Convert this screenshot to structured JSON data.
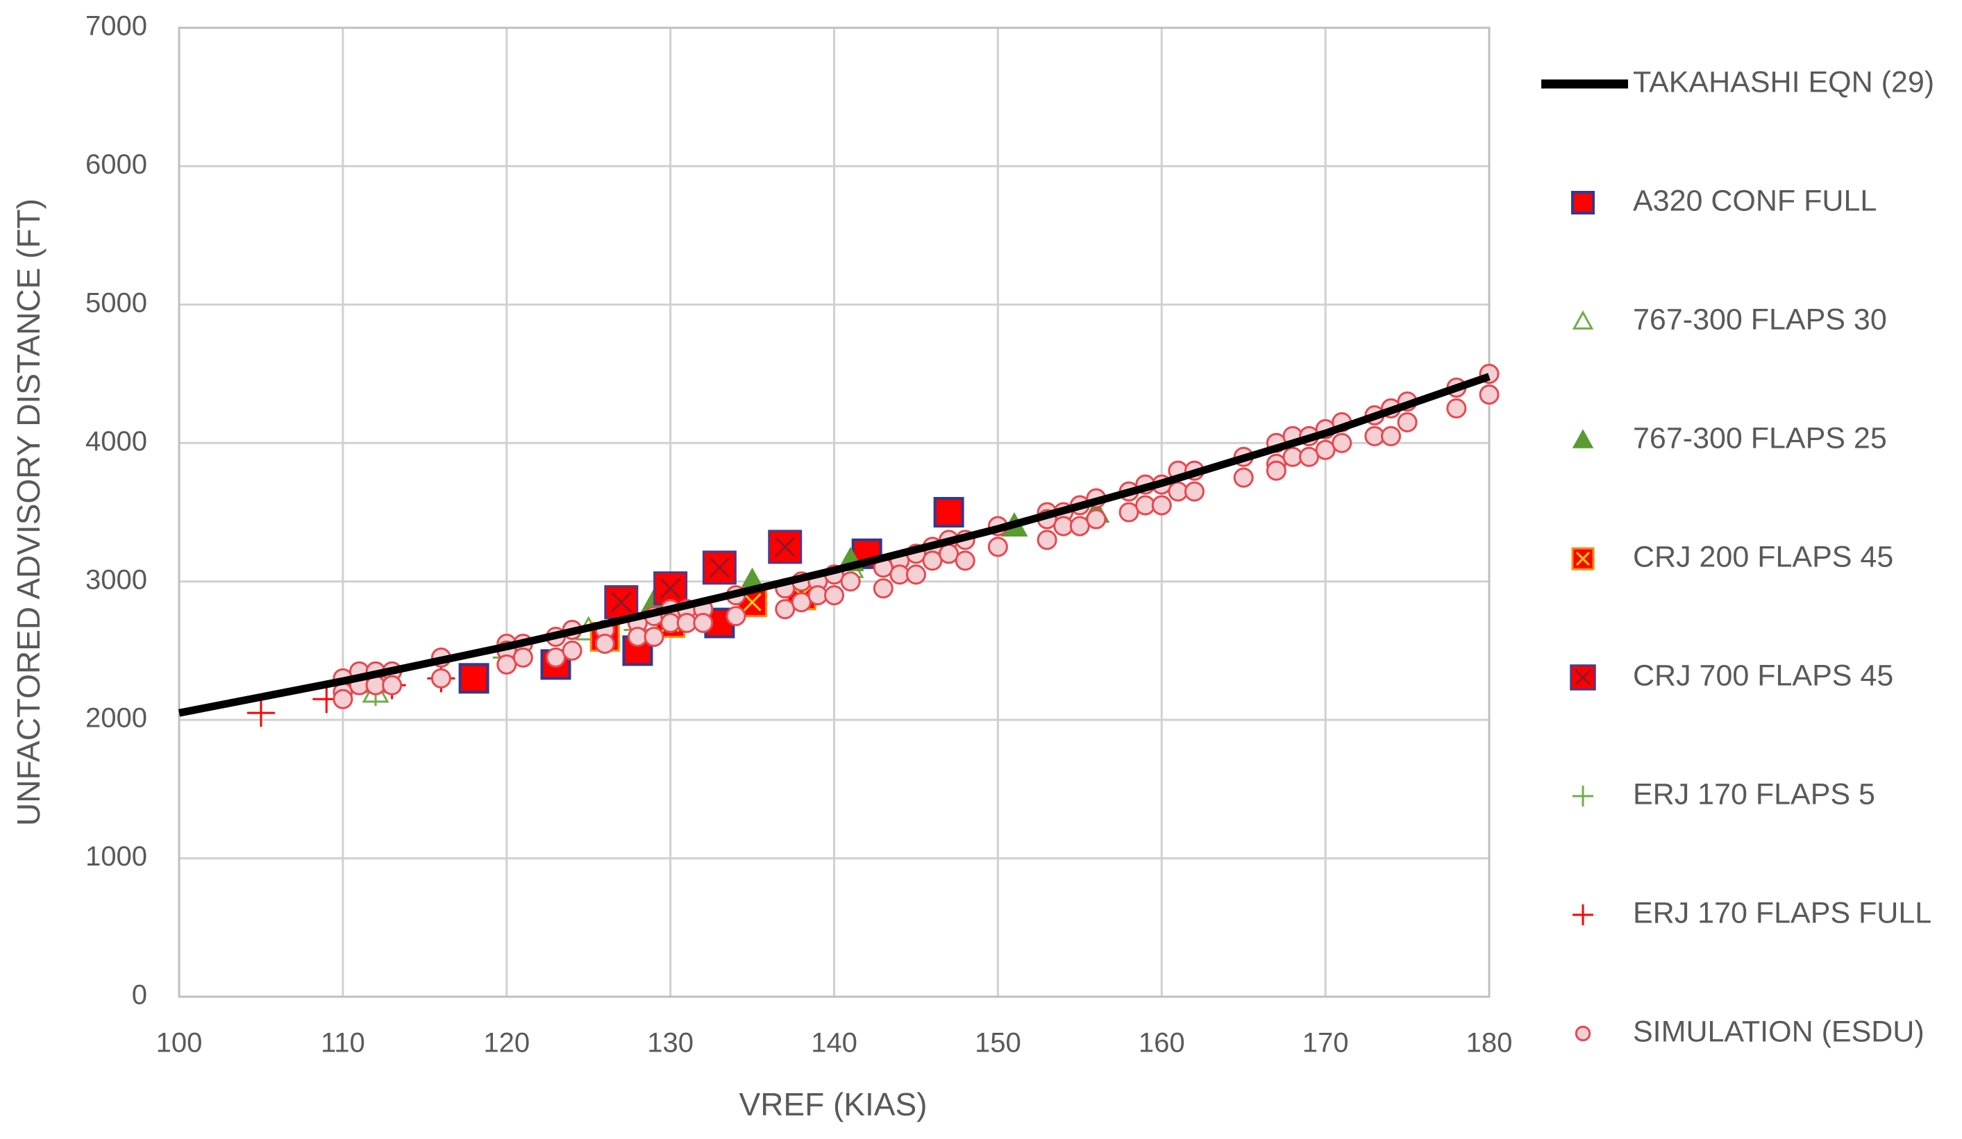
{
  "chart_data": {
    "type": "scatter",
    "x_label": "VREF (KIAS)",
    "y_label": "UNFACTORED ADVISORY DISTANCE (FT)",
    "xlim": [
      100,
      180
    ],
    "xticks": [
      100,
      110,
      120,
      130,
      140,
      150,
      160,
      170,
      180
    ],
    "ylim": [
      0,
      7000
    ],
    "yticks": [
      0,
      1000,
      2000,
      3000,
      4000,
      5000,
      6000,
      7000
    ],
    "grid": true,
    "legend": "right",
    "series": [
      {
        "name": "TAKAHASHI EQN (29)",
        "marker": "line",
        "color": "#000000",
        "x": [
          100,
          110,
          120,
          130,
          140,
          150,
          160,
          170,
          180
        ],
        "values": [
          2050,
          2280,
          2530,
          2800,
          3080,
          3380,
          3710,
          4070,
          4480
        ]
      },
      {
        "name": "A320 CONF FULL",
        "marker": "square",
        "color": "#ff0000",
        "x": [
          118,
          123,
          128,
          133,
          142,
          147
        ],
        "values": [
          2300,
          2400,
          2500,
          2700,
          3200,
          3500
        ]
      },
      {
        "name": "767-300 FLAPS 30",
        "marker": "triangle-open",
        "color": "#70ad47",
        "x": [
          112,
          125,
          141
        ],
        "values": [
          2200,
          2650,
          3100
        ]
      },
      {
        "name": "767-300 FLAPS 25",
        "marker": "triangle",
        "color": "#5b9b32",
        "x": [
          129,
          135,
          141,
          151,
          156
        ],
        "values": [
          2850,
          3000,
          3150,
          3400,
          3500
        ]
      },
      {
        "name": "CRJ 200 FLAPS 45",
        "marker": "square-x-yellow",
        "color": "#ff0000",
        "x": [
          126,
          130,
          135,
          138
        ],
        "values": [
          2600,
          2700,
          2850,
          2900
        ]
      },
      {
        "name": "CRJ 700 FLAPS 45",
        "marker": "square-x",
        "color": "#ff0000",
        "x": [
          127,
          130,
          133,
          137
        ],
        "values": [
          2850,
          2950,
          3100,
          3250
        ]
      },
      {
        "name": "ERJ 170 FLAPS 5",
        "marker": "plus",
        "color": "#70ad47",
        "x": [
          112,
          120,
          128
        ],
        "values": [
          2200,
          2450,
          2650
        ]
      },
      {
        "name": "ERJ 170 FLAPS FULL",
        "marker": "plus",
        "color": "#ff0000",
        "x": [
          105,
          109,
          113,
          116
        ],
        "values": [
          2050,
          2150,
          2250,
          2300
        ]
      },
      {
        "name": "SIMULATION (ESDU)",
        "marker": "circle",
        "color": "#e8474f",
        "x": [
          110,
          110,
          110,
          111,
          111,
          112,
          112,
          113,
          113,
          116,
          116,
          120,
          120,
          120,
          121,
          121,
          123,
          123,
          124,
          124,
          126,
          126,
          128,
          128,
          129,
          129,
          130,
          130,
          130,
          131,
          131,
          132,
          132,
          134,
          134,
          137,
          137,
          138,
          138,
          139,
          139,
          140,
          140,
          141,
          143,
          143,
          144,
          144,
          145,
          145,
          146,
          146,
          147,
          147,
          148,
          148,
          150,
          150,
          153,
          153,
          153,
          154,
          154,
          155,
          155,
          156,
          156,
          158,
          158,
          159,
          159,
          160,
          160,
          161,
          161,
          162,
          162,
          165,
          165,
          167,
          167,
          167,
          168,
          168,
          169,
          169,
          170,
          170,
          171,
          171,
          173,
          173,
          174,
          174,
          175,
          175,
          178,
          178,
          180,
          180
        ],
        "values": [
          2300,
          2200,
          2150,
          2350,
          2250,
          2350,
          2250,
          2350,
          2250,
          2450,
          2300,
          2550,
          2500,
          2400,
          2550,
          2450,
          2600,
          2450,
          2650,
          2500,
          2650,
          2550,
          2700,
          2600,
          2750,
          2600,
          2800,
          2750,
          2700,
          2800,
          2700,
          2800,
          2700,
          2900,
          2750,
          2950,
          2800,
          3000,
          2850,
          3000,
          2900,
          3050,
          2900,
          3000,
          3100,
          2950,
          3150,
          3050,
          3200,
          3050,
          3250,
          3150,
          3300,
          3200,
          3300,
          3150,
          3400,
          3250,
          3500,
          3450,
          3300,
          3500,
          3400,
          3550,
          3400,
          3600,
          3450,
          3650,
          3500,
          3700,
          3550,
          3700,
          3550,
          3800,
          3650,
          3800,
          3650,
          3900,
          3750,
          4000,
          3850,
          3800,
          4050,
          3900,
          4050,
          3900,
          4100,
          3950,
          4150,
          4000,
          4200,
          4050,
          4250,
          4050,
          4300,
          4150,
          4400,
          4250,
          4500,
          4350
        ]
      }
    ]
  }
}
